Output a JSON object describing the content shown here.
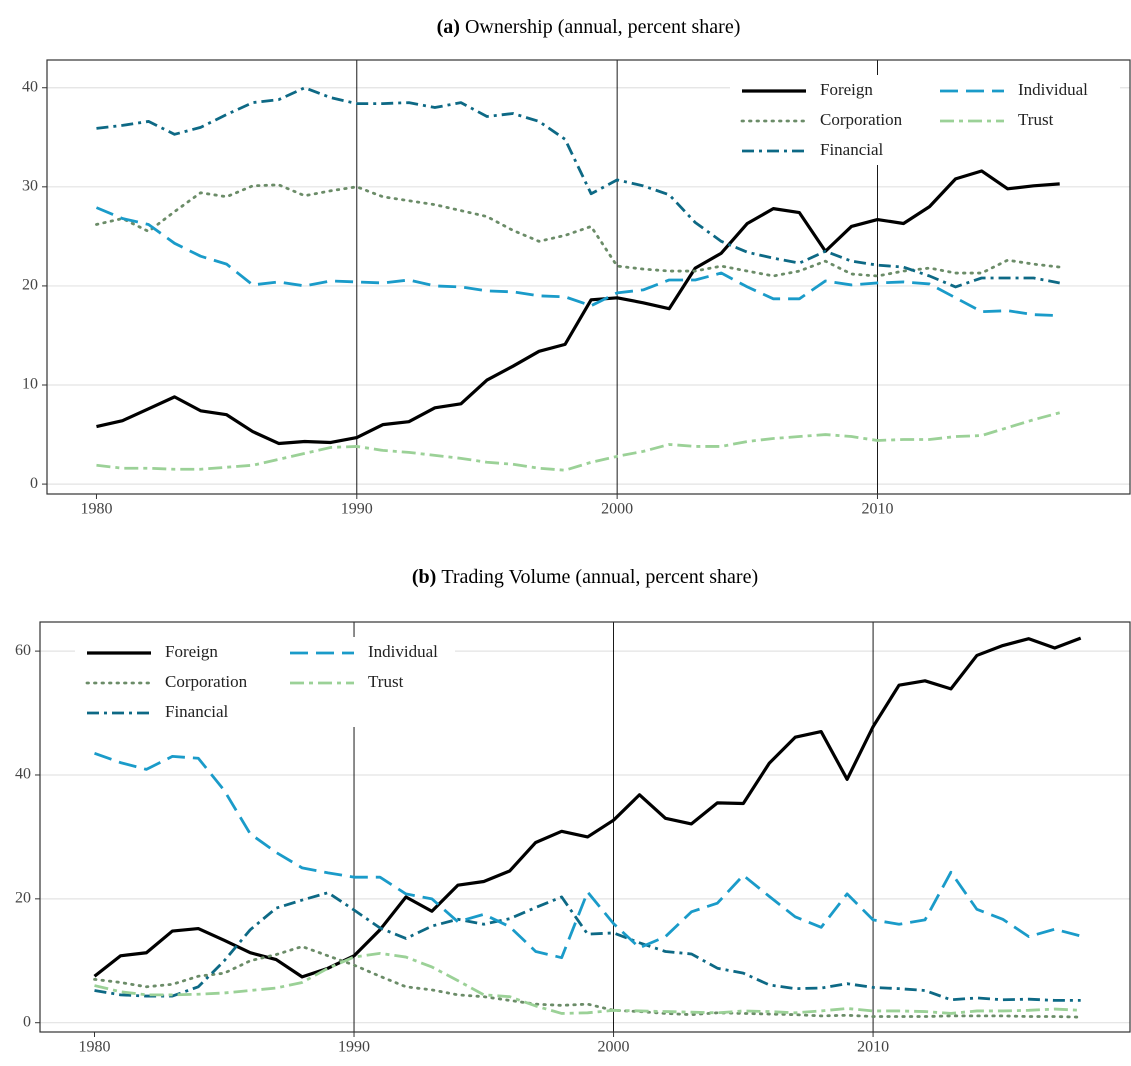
{
  "chart_data": [
    {
      "type": "line",
      "label": "(a)",
      "title": "Ownership (annual, percent share)",
      "x": [
        1980,
        1981,
        1982,
        1983,
        1984,
        1985,
        1986,
        1987,
        1988,
        1989,
        1990,
        1991,
        1992,
        1993,
        1994,
        1995,
        1996,
        1997,
        1998,
        1999,
        2000,
        2001,
        2002,
        2003,
        2004,
        2005,
        2006,
        2007,
        2008,
        2009,
        2010,
        2011,
        2012,
        2013,
        2014,
        2015,
        2016,
        2017
      ],
      "series": [
        {
          "name": "Foreign",
          "color": "#000000",
          "linestyle": "solid",
          "values": [
            5.8,
            6.4,
            7.6,
            8.8,
            7.4,
            7.0,
            5.3,
            4.1,
            4.3,
            4.2,
            4.7,
            6.0,
            6.3,
            7.7,
            8.1,
            10.5,
            11.9,
            13.4,
            14.1,
            18.6,
            18.8,
            18.3,
            17.7,
            21.8,
            23.3,
            26.3,
            27.8,
            27.4,
            23.5,
            26.0,
            26.7,
            26.3,
            28.0,
            30.8,
            31.6,
            29.8,
            30.1,
            30.3
          ]
        },
        {
          "name": "Corporation",
          "color": "#6b8c68",
          "linestyle": "dotted",
          "values": [
            26.2,
            26.8,
            25.5,
            27.5,
            29.4,
            29.0,
            30.1,
            30.2,
            29.1,
            29.6,
            30.0,
            29.0,
            28.6,
            28.2,
            27.6,
            27.0,
            25.6,
            24.5,
            25.1,
            26.0,
            22.0,
            21.7,
            21.5,
            21.5,
            22.0,
            21.5,
            21.0,
            21.5,
            22.5,
            21.2,
            21.0,
            21.5,
            21.8,
            21.3,
            21.3,
            22.6,
            22.2,
            21.9
          ]
        },
        {
          "name": "Financial",
          "color": "#0d6985",
          "linestyle": "dashdot",
          "values": [
            35.9,
            36.2,
            36.6,
            35.3,
            36.0,
            37.3,
            38.5,
            38.8,
            40.0,
            39.0,
            38.4,
            38.4,
            38.5,
            38.0,
            38.5,
            37.1,
            37.4,
            36.6,
            34.8,
            29.3,
            30.7,
            30.1,
            29.2,
            26.4,
            24.5,
            23.4,
            22.8,
            22.3,
            23.5,
            22.5,
            22.1,
            21.9,
            21.0,
            19.9,
            20.8,
            20.8,
            20.8,
            20.3
          ]
        },
        {
          "name": "Individual",
          "color": "#1a9bc9",
          "linestyle": "dashed",
          "values": [
            27.9,
            26.8,
            26.2,
            24.3,
            23.0,
            22.2,
            20.1,
            20.4,
            20.0,
            20.5,
            20.4,
            20.3,
            20.6,
            20.0,
            19.9,
            19.5,
            19.4,
            19.0,
            18.9,
            18.0,
            19.3,
            19.6,
            20.6,
            20.6,
            21.3,
            19.9,
            18.7,
            18.7,
            20.5,
            20.1,
            20.3,
            20.4,
            20.2,
            18.8,
            17.4,
            17.5,
            17.1,
            17.0
          ]
        },
        {
          "name": "Trust",
          "color": "#9bd197",
          "linestyle": "longdashdot",
          "values": [
            1.9,
            1.6,
            1.6,
            1.5,
            1.5,
            1.7,
            1.9,
            2.5,
            3.1,
            3.7,
            3.8,
            3.4,
            3.2,
            2.9,
            2.6,
            2.2,
            2.0,
            1.6,
            1.4,
            2.2,
            2.8,
            3.3,
            4.0,
            3.8,
            3.8,
            4.3,
            4.6,
            4.8,
            5.0,
            4.8,
            4.4,
            4.5,
            4.5,
            4.8,
            4.9,
            5.7,
            6.5,
            7.2
          ]
        }
      ],
      "xlim": [
        1978.1,
        2019.7
      ],
      "ylim": [
        -1,
        42.8
      ],
      "xticks": [
        1980,
        1990,
        2000,
        2010
      ],
      "yticks": [
        0,
        10,
        20,
        30,
        40
      ],
      "vlines": [
        1990,
        2000,
        2010
      ],
      "grid": true,
      "legend": "top-right"
    },
    {
      "type": "line",
      "label": "(b)",
      "title": "Trading Volume (annual, percent share)",
      "x": [
        1980,
        1981,
        1982,
        1983,
        1984,
        1985,
        1986,
        1987,
        1988,
        1989,
        1990,
        1991,
        1992,
        1993,
        1994,
        1995,
        1996,
        1997,
        1998,
        1999,
        2000,
        2001,
        2002,
        2003,
        2004,
        2005,
        2006,
        2007,
        2008,
        2009,
        2010,
        2011,
        2012,
        2013,
        2014,
        2015,
        2016,
        2017,
        2018
      ],
      "series": [
        {
          "name": "Foreign",
          "color": "#000000",
          "linestyle": "solid",
          "values": [
            7.5,
            10.8,
            11.3,
            14.8,
            15.2,
            13.3,
            11.3,
            10.2,
            7.4,
            8.8,
            10.8,
            15.0,
            20.3,
            18.0,
            22.2,
            22.8,
            24.5,
            29.1,
            30.9,
            30.0,
            32.7,
            36.8,
            33.0,
            32.1,
            35.5,
            35.4,
            41.9,
            46.1,
            47.0,
            39.3,
            47.8,
            54.5,
            55.2,
            53.9,
            59.3,
            60.9,
            62.0,
            60.5,
            62.1
          ]
        },
        {
          "name": "Corporation",
          "color": "#6b8c68",
          "linestyle": "dotted",
          "values": [
            7.0,
            6.5,
            5.8,
            6.2,
            7.5,
            8.0,
            10.0,
            11.0,
            12.3,
            10.8,
            9.3,
            7.5,
            5.8,
            5.3,
            4.5,
            4.2,
            3.6,
            3.0,
            2.8,
            3.0,
            2.0,
            1.8,
            1.5,
            1.3,
            1.6,
            1.5,
            1.4,
            1.3,
            1.1,
            1.2,
            1.0,
            1.0,
            1.0,
            1.1,
            1.1,
            1.1,
            1.0,
            1.0,
            0.9
          ]
        },
        {
          "name": "Financial",
          "color": "#0d6985",
          "linestyle": "dashdot",
          "values": [
            5.2,
            4.5,
            4.3,
            4.3,
            5.8,
            10.0,
            15.0,
            18.5,
            19.8,
            21.0,
            18.2,
            15.3,
            13.6,
            15.6,
            16.7,
            15.9,
            16.8,
            18.6,
            20.3,
            14.3,
            14.5,
            12.9,
            11.5,
            11.1,
            8.8,
            8.0,
            6.1,
            5.5,
            5.6,
            6.3,
            5.7,
            5.5,
            5.2,
            3.7,
            4.0,
            3.7,
            3.8,
            3.6,
            3.6
          ]
        },
        {
          "name": "Individual",
          "color": "#1a9bc9",
          "linestyle": "dashed",
          "values": [
            43.5,
            42.0,
            40.9,
            43.0,
            42.7,
            37.5,
            30.5,
            27.5,
            25.0,
            24.2,
            23.5,
            23.5,
            20.8,
            20.0,
            16.3,
            17.5,
            15.5,
            11.5,
            10.5,
            21.1,
            16.0,
            12.1,
            13.9,
            17.9,
            19.3,
            23.8,
            20.4,
            17.1,
            15.4,
            20.8,
            16.6,
            15.9,
            16.6,
            24.3,
            18.3,
            16.7,
            13.9,
            15.1,
            14.0
          ]
        },
        {
          "name": "Trust",
          "color": "#9bd197",
          "linestyle": "longdashdot",
          "values": [
            6.0,
            5.0,
            4.5,
            4.5,
            4.6,
            4.8,
            5.2,
            5.6,
            6.5,
            8.8,
            10.6,
            11.2,
            10.6,
            9.0,
            6.8,
            4.5,
            4.2,
            2.7,
            1.5,
            1.6,
            2.0,
            1.9,
            1.8,
            1.7,
            1.6,
            1.9,
            1.8,
            1.6,
            1.9,
            2.3,
            1.9,
            1.9,
            1.8,
            1.5,
            1.9,
            1.9,
            2.0,
            2.2,
            2.0
          ]
        }
      ],
      "xlim": [
        1977.9,
        2019.9
      ],
      "ylim": [
        -1.5,
        64.7
      ],
      "xticks": [
        1980,
        1990,
        2000,
        2010
      ],
      "yticks": [
        0,
        20,
        40,
        60
      ],
      "vlines": [
        1990,
        2000,
        2010
      ],
      "grid": true,
      "legend": "top-left"
    }
  ]
}
